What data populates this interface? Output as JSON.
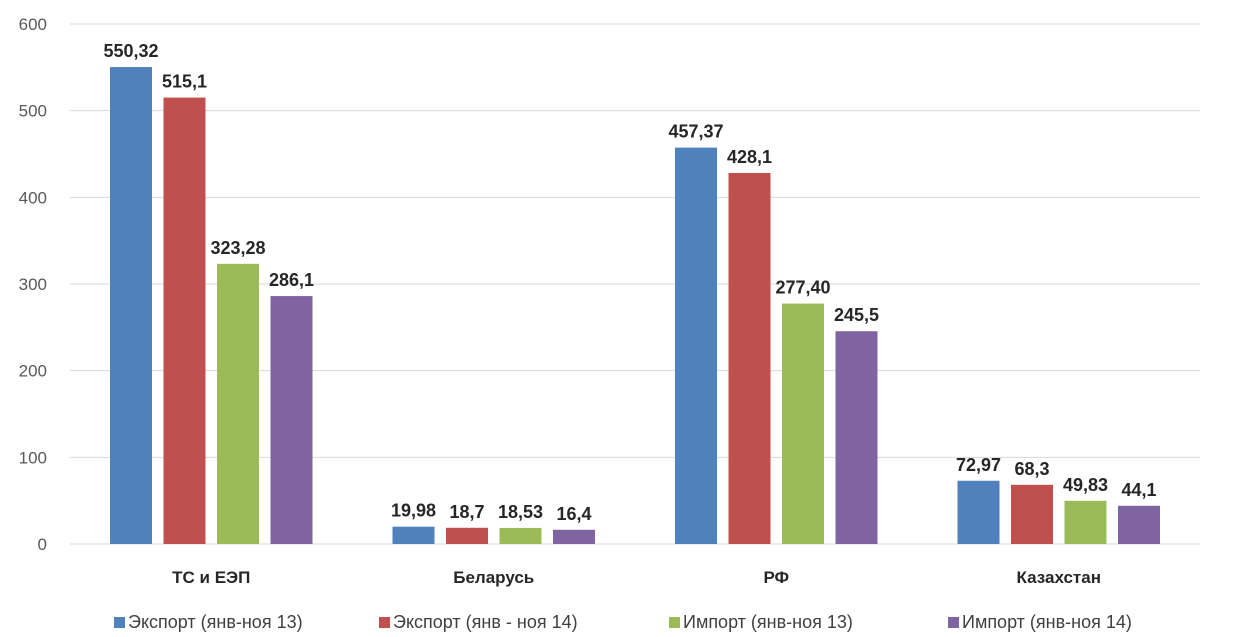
{
  "chart_data": {
    "type": "bar",
    "title": "",
    "xlabel": "",
    "ylabel": "",
    "ylim": [
      0,
      600
    ],
    "yticks": [
      0,
      100,
      200,
      300,
      400,
      500,
      600
    ],
    "grid": true,
    "legend_position": "bottom",
    "categories": [
      "ТС и ЕЭП",
      "Беларусь",
      "РФ",
      "Казахстан"
    ],
    "series": [
      {
        "name": "Экспорт (янв-ноя 13)",
        "color": "#4F81BD",
        "values": [
          550.32,
          19.98,
          457.37,
          72.97
        ],
        "labels": [
          "550,32",
          "19,98",
          "457,37",
          "72,97"
        ]
      },
      {
        "name": "Экспорт (янв - ноя 14)",
        "color": "#C0504D",
        "values": [
          515.1,
          18.7,
          428.1,
          68.3
        ],
        "labels": [
          "515,1",
          "18,7",
          "428,1",
          "68,3"
        ]
      },
      {
        "name": "Импорт (янв-ноя 13)",
        "color": "#9BBB59",
        "values": [
          323.28,
          18.53,
          277.4,
          49.83
        ],
        "labels": [
          "323,28",
          "18,53",
          "277,40",
          "49,83"
        ]
      },
      {
        "name": "Импорт (янв-ноя 14)",
        "color": "#8064A2",
        "values": [
          286.1,
          16.4,
          245.5,
          44.1
        ],
        "labels": [
          "286,1",
          "16,4",
          "245,5",
          "44,1"
        ]
      }
    ]
  }
}
